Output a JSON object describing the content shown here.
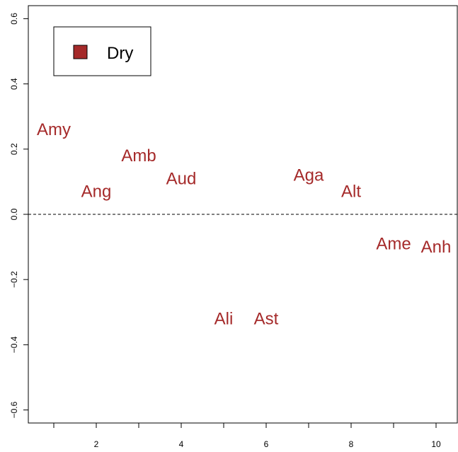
{
  "chart_data": {
    "type": "scatter",
    "xlim": [
      0.4,
      10.5
    ],
    "ylim": [
      -0.64,
      0.64
    ],
    "x_ticks": [
      1,
      2,
      3,
      4,
      5,
      6,
      7,
      8,
      9,
      10
    ],
    "x_tick_labels": [
      "2",
      "4",
      "6",
      "8",
      "10"
    ],
    "x_tick_label_values": [
      2,
      4,
      6,
      8,
      10
    ],
    "y_ticks": [
      -0.6,
      -0.4,
      -0.2,
      0.0,
      0.2,
      0.4,
      0.6
    ],
    "y_tick_labels": [
      "−0.6",
      "−0.4",
      "−0.2",
      "0.0",
      "0.2",
      "0.4",
      "0.6"
    ],
    "reference_line_y": 0.0,
    "grid": false,
    "legend": {
      "position": "top-left",
      "entries": [
        {
          "label": "Dry",
          "color": "#A52A2A"
        }
      ]
    },
    "series": [
      {
        "name": "Dry",
        "color": "#A52A2A",
        "points": [
          {
            "label": "Amy",
            "x": 1.0,
            "y": 0.26
          },
          {
            "label": "Ang",
            "x": 2.0,
            "y": 0.07
          },
          {
            "label": "Amb",
            "x": 3.0,
            "y": 0.18
          },
          {
            "label": "Aud",
            "x": 4.0,
            "y": 0.11
          },
          {
            "label": "Ali",
            "x": 5.0,
            "y": -0.32
          },
          {
            "label": "Ast",
            "x": 6.0,
            "y": -0.32
          },
          {
            "label": "Aga",
            "x": 7.0,
            "y": 0.12
          },
          {
            "label": "Alt",
            "x": 8.0,
            "y": 0.07
          },
          {
            "label": "Ame",
            "x": 9.0,
            "y": -0.09
          },
          {
            "label": "Anh",
            "x": 10.0,
            "y": -0.1
          }
        ]
      }
    ]
  }
}
